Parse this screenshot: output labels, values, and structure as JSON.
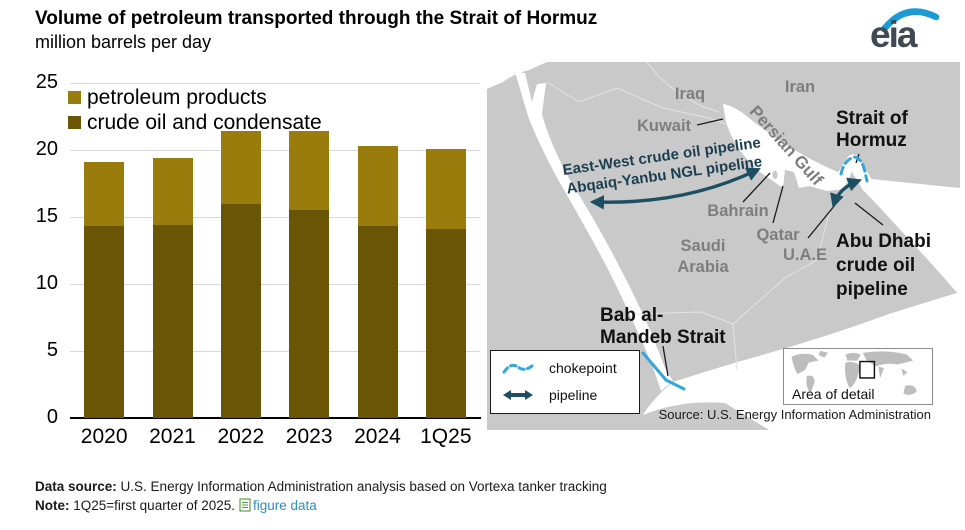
{
  "header": {
    "title": "Volume of petroleum transported through the Strait of Hormuz",
    "subtitle": "million barrels per day",
    "logo_text": "eia"
  },
  "chart_data": {
    "type": "bar",
    "stacked": true,
    "title": "Volume of petroleum transported through the Strait of Hormuz",
    "xlabel": "",
    "ylabel": "million barrels per day",
    "categories": [
      "2020",
      "2021",
      "2022",
      "2023",
      "2024",
      "1Q25"
    ],
    "series": [
      {
        "name": "crude oil and condensate",
        "color": "#6A5406",
        "values": [
          14.3,
          14.4,
          16.0,
          15.5,
          14.3,
          14.1
        ]
      },
      {
        "name": "petroleum products",
        "color": "#9A7C0C",
        "values": [
          4.8,
          5.0,
          5.4,
          5.9,
          6.0,
          6.0
        ]
      }
    ],
    "totals": [
      19.1,
      19.4,
      21.4,
      21.4,
      20.3,
      20.1
    ],
    "ylim": [
      0,
      25
    ],
    "yticks": [
      0,
      5,
      10,
      15,
      20,
      25
    ],
    "grid": true,
    "legend_position": "top-left-inside"
  },
  "map": {
    "labels": {
      "iraq": "Iraq",
      "iran": "Iran",
      "kuwait": "Kuwait",
      "persian_gulf": "Persian Gulf",
      "pipelines_rotated": "East-West crude oil pipeline\nAbqaiq-Yanbu NGL pipeline",
      "bahrain": "Bahrain",
      "qatar": "Qatar",
      "saudi_arabia": "Saudi\nArabia",
      "uae": "U.A.E",
      "strait_of_hormuz": "Strait of\nHormuz",
      "abu_dhabi_pipeline": "Abu Dhabi\ncrude oil\npipeline",
      "bab_al_mandeb": "Bab al-\nMandeb Strait"
    },
    "legend": {
      "chokepoint": "chokepoint",
      "pipeline": "pipeline"
    },
    "inset_label": "Area of detail",
    "source": "Source: U.S. Energy Information Administration",
    "colors": {
      "land": "#C9C9C9",
      "water": "#FFFFFF",
      "chokepoint": "#35A6DB",
      "pipeline": "#1D4F63",
      "pipeline_label": "#1B3F50",
      "country_label": "#7E7E7E"
    }
  },
  "footer": {
    "data_source_label": "Data source:",
    "data_source_text": "U.S. Energy Information Administration analysis based on Vortexa tanker tracking",
    "note_label": "Note:",
    "note_text": "1Q25=first quarter of 2025.",
    "figure_data_link": "figure data",
    "link_color": "#2E8EC0"
  }
}
